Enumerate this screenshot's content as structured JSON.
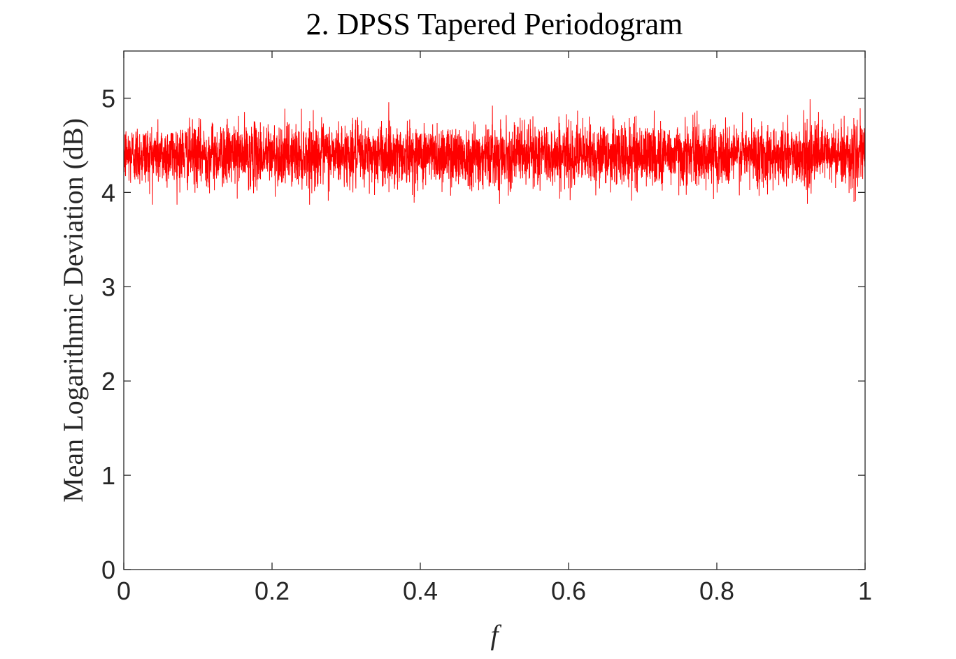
{
  "chart_data": {
    "type": "line",
    "title": "2. DPSS Tapered Periodogram",
    "xlabel": "f",
    "ylabel": "Mean Logarithmic Deviation (dB)",
    "xlim": [
      0,
      1
    ],
    "ylim": [
      0,
      5.5
    ],
    "xticks": [
      0,
      0.2,
      0.4,
      0.6,
      0.8,
      1
    ],
    "xtick_labels": [
      "0",
      "0.2",
      "0.4",
      "0.6",
      "0.8",
      "1"
    ],
    "yticks": [
      0,
      1,
      2,
      3,
      4,
      5
    ],
    "ytick_labels": [
      "0",
      "1",
      "2",
      "3",
      "4",
      "5"
    ],
    "grid": false,
    "series": [
      {
        "color": "#ff0000",
        "description_values": {
          "mean": 4.4,
          "typical_band": [
            4.1,
            4.75
          ],
          "max": 5.05,
          "min": 3.87
        }
      }
    ],
    "colors": {
      "series": "#ff0000",
      "axes": "#262626",
      "background": "#ffffff"
    }
  }
}
